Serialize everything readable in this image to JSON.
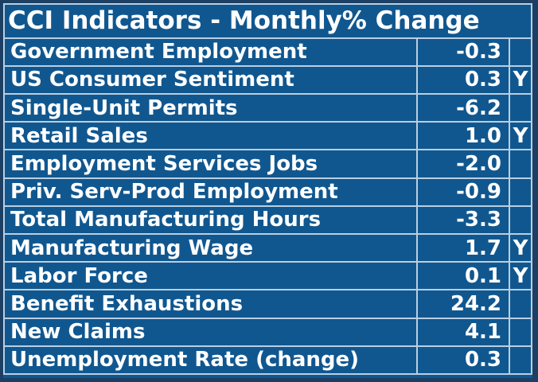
{
  "chart_data": {
    "type": "table",
    "title": "CCI Indicators - Monthly% Change",
    "columns": [
      "indicator",
      "monthly_pct_change",
      "flag"
    ],
    "rows": [
      {
        "label": "Government Employment",
        "value": "-0.3",
        "flag": ""
      },
      {
        "label": "US Consumer Sentiment",
        "value": "0.3",
        "flag": "Y"
      },
      {
        "label": "Single-Unit Permits",
        "value": "-6.2",
        "flag": ""
      },
      {
        "label": "Retail Sales",
        "value": "1.0",
        "flag": "Y"
      },
      {
        "label": "Employment Services Jobs",
        "value": "-2.0",
        "flag": ""
      },
      {
        "label": "Priv. Serv-Prod Employment",
        "value": "-0.9",
        "flag": ""
      },
      {
        "label": "Total Manufacturing Hours",
        "value": "-3.3",
        "flag": ""
      },
      {
        "label": "Manufacturing Wage",
        "value": "1.7",
        "flag": "Y"
      },
      {
        "label": "Labor Force",
        "value": "0.1",
        "flag": "Y"
      },
      {
        "label": "Benefit Exhaustions",
        "value": "24.2",
        "flag": ""
      },
      {
        "label": "New Claims",
        "value": "4.1",
        "flag": ""
      },
      {
        "label": "Unemployment Rate (change)",
        "value": "0.3",
        "flag": ""
      }
    ],
    "colors": {
      "background": "#11578F",
      "frame": "#1C3F63",
      "gridline": "#B9CFE2",
      "text": "#FFFFFF"
    }
  }
}
